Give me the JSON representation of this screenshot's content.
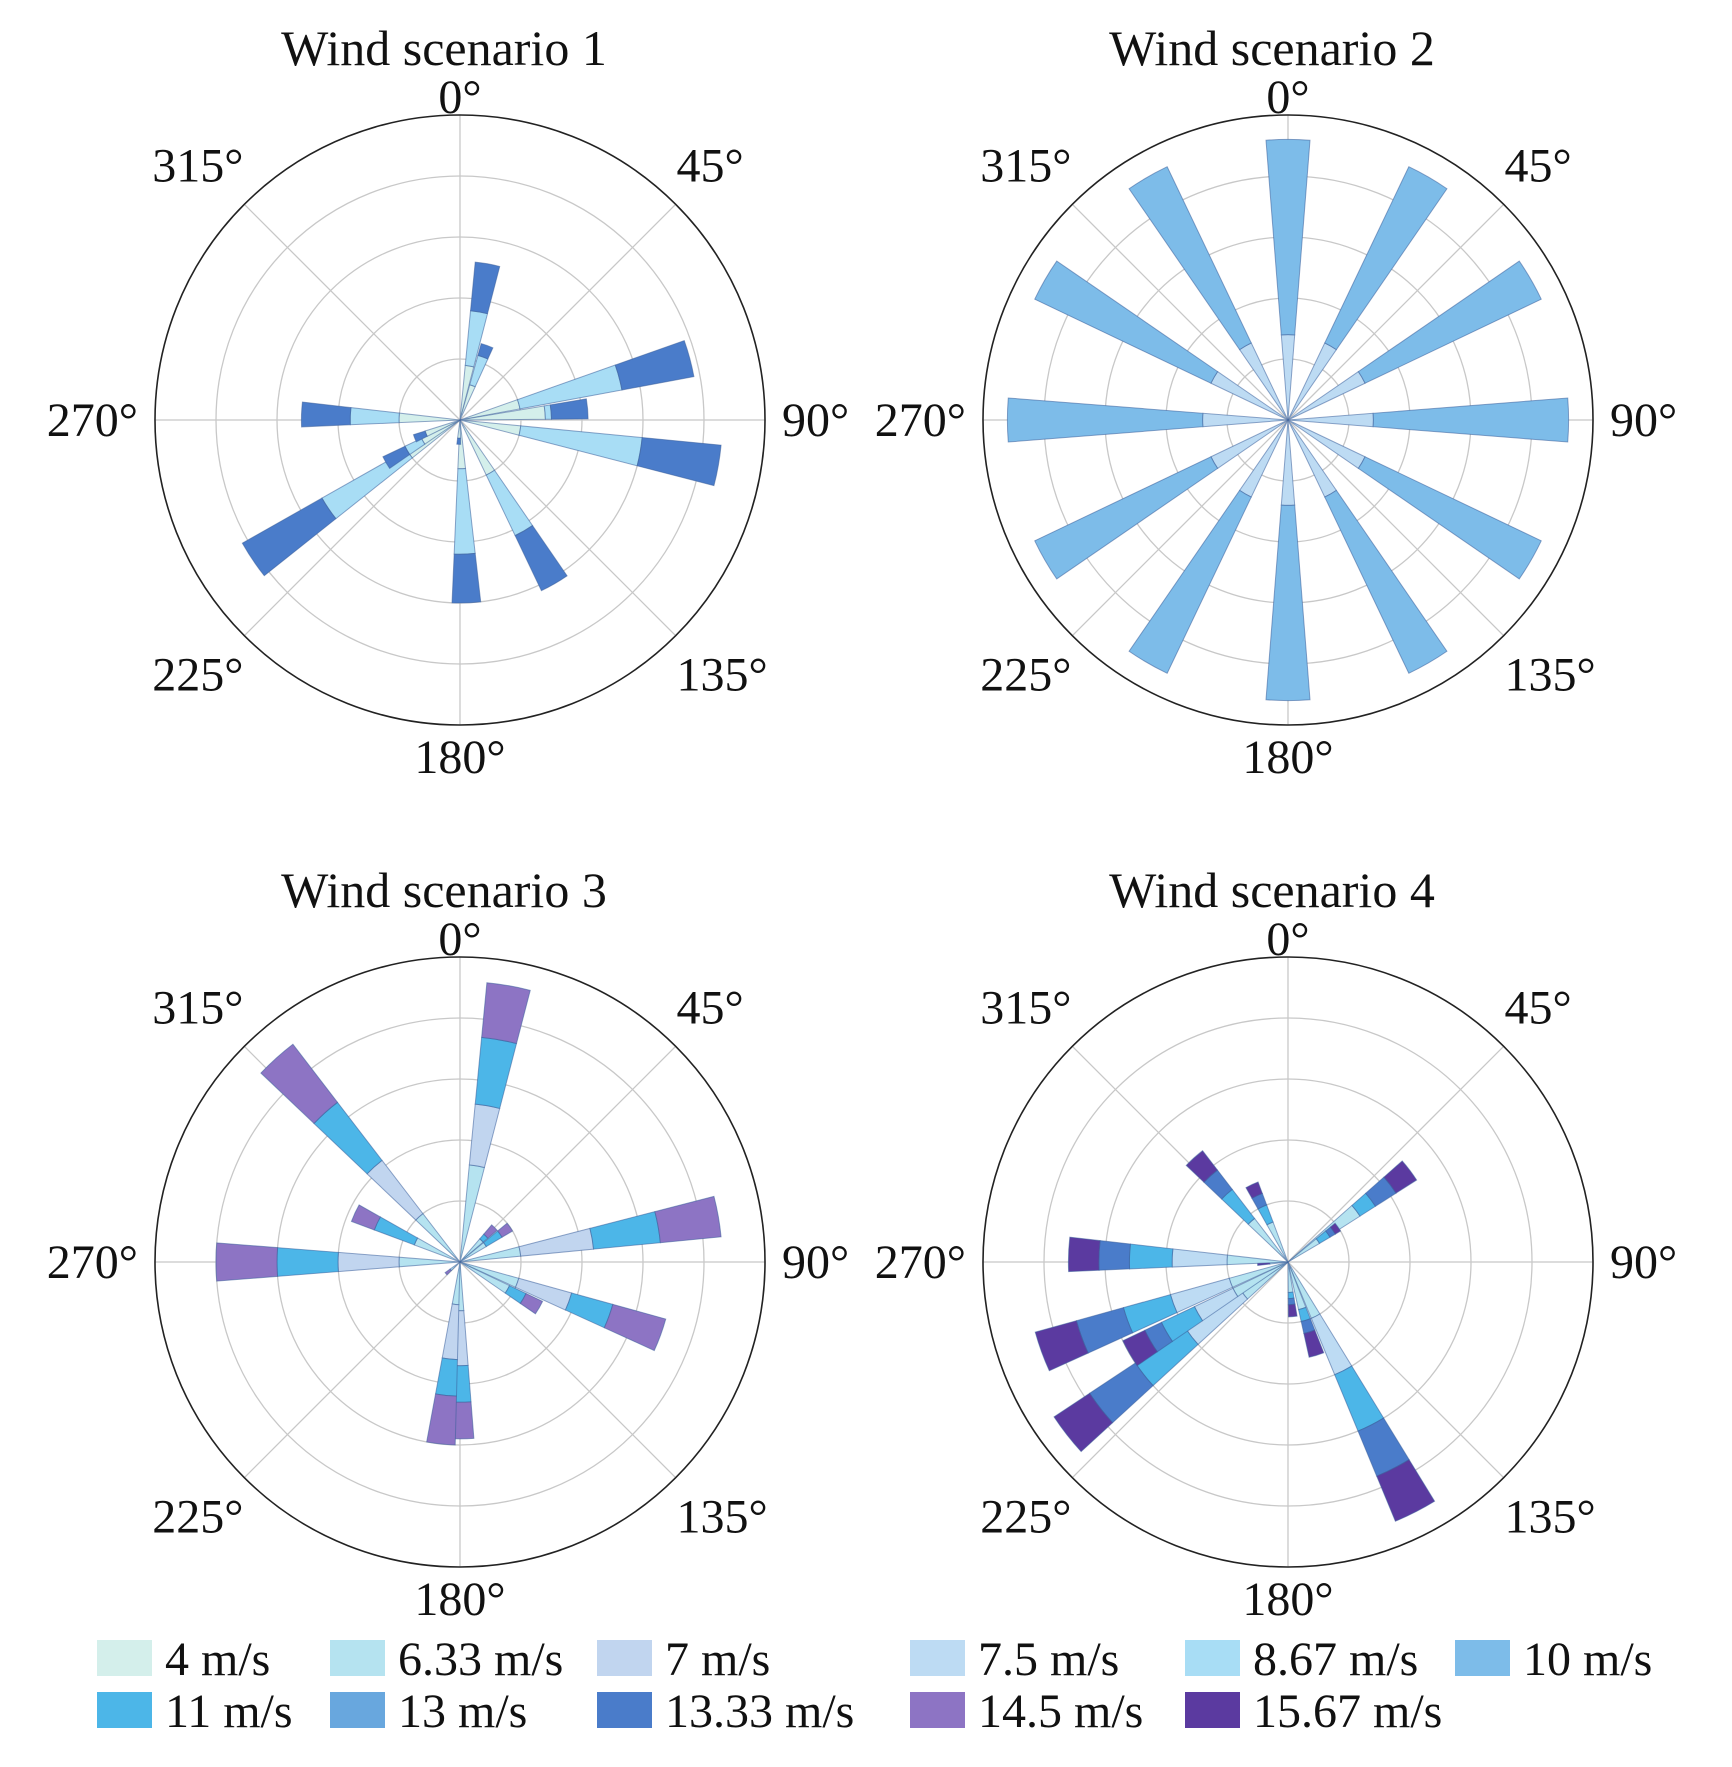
{
  "chart_data": [
    {
      "type": "polar-bar",
      "title": "Wind scenario 1",
      "angle_labels": [
        "0°",
        "45°",
        "90°",
        "135°",
        "180°",
        "225°",
        "270°",
        "315°"
      ],
      "radial_rings": 5,
      "radial_max": 5,
      "grid": true,
      "bars": [
        {
          "direction": 10,
          "segments": [
            {
              "speed": "4 m/s",
              "r": 0.9
            },
            {
              "speed": "8.67 m/s",
              "r": 1.8
            },
            {
              "speed": "13.33 m/s",
              "r": 2.6
            }
          ]
        },
        {
          "direction": 20,
          "segments": [
            {
              "speed": "4 m/s",
              "r": 0.6
            },
            {
              "speed": "8.67 m/s",
              "r": 1.1
            },
            {
              "speed": "13.33 m/s",
              "r": 1.3
            }
          ]
        },
        {
          "direction": 75,
          "segments": [
            {
              "speed": "4 m/s",
              "r": 1.0
            },
            {
              "speed": "8.67 m/s",
              "r": 2.7
            },
            {
              "speed": "13.33 m/s",
              "r": 3.9
            }
          ]
        },
        {
          "direction": 85,
          "segments": [
            {
              "speed": "4 m/s",
              "r": 1.4
            },
            {
              "speed": "8.67 m/s",
              "r": 1.5
            },
            {
              "speed": "13.33 m/s",
              "r": 2.1
            }
          ]
        },
        {
          "direction": 100,
          "segments": [
            {
              "speed": "4 m/s",
              "r": 1.0
            },
            {
              "speed": "8.67 m/s",
              "r": 3.0
            },
            {
              "speed": "13.33 m/s",
              "r": 4.3
            }
          ]
        },
        {
          "direction": 150,
          "segments": [
            {
              "speed": "4 m/s",
              "r": 1.0
            },
            {
              "speed": "8.67 m/s",
              "r": 2.1
            },
            {
              "speed": "13.33 m/s",
              "r": 3.1
            }
          ]
        },
        {
          "direction": 178,
          "segments": [
            {
              "speed": "4 m/s",
              "r": 0.8
            },
            {
              "speed": "8.67 m/s",
              "r": 2.2
            },
            {
              "speed": "13.33 m/s",
              "r": 3.0
            }
          ]
        },
        {
          "direction": 183,
          "segments": [
            {
              "speed": "4 m/s",
              "r": 0.3
            },
            {
              "speed": "13.33 m/s",
              "r": 0.4
            }
          ]
        },
        {
          "direction": 236,
          "segments": [
            {
              "speed": "4 m/s",
              "r": 1.0
            },
            {
              "speed": "8.67 m/s",
              "r": 2.6
            },
            {
              "speed": "13.33 m/s",
              "r": 4.1
            }
          ]
        },
        {
          "direction": 240,
          "segments": [
            {
              "speed": "4 m/s",
              "r": 0.7
            },
            {
              "speed": "8.67 m/s",
              "r": 1.0
            },
            {
              "speed": "13.33 m/s",
              "r": 1.4
            }
          ]
        },
        {
          "direction": 248,
          "segments": [
            {
              "speed": "4 m/s",
              "r": 0.6
            },
            {
              "speed": "13.33 m/s",
              "r": 0.8
            }
          ]
        },
        {
          "direction": 272,
          "segments": [
            {
              "speed": "4 m/s",
              "r": 1.0
            },
            {
              "speed": "8.67 m/s",
              "r": 1.8
            },
            {
              "speed": "13.33 m/s",
              "r": 2.6
            }
          ]
        }
      ]
    },
    {
      "type": "polar-bar",
      "title": "Wind scenario 2",
      "angle_labels": [
        "0°",
        "45°",
        "90°",
        "135°",
        "180°",
        "225°",
        "270°",
        "315°"
      ],
      "radial_rings": 5,
      "radial_max": 5,
      "grid": true,
      "bars": [
        {
          "direction": 0,
          "segments": [
            {
              "speed": "7.5 m/s",
              "r": 1.4
            },
            {
              "speed": "10 m/s",
              "r": 4.6
            }
          ]
        },
        {
          "direction": 30,
          "segments": [
            {
              "speed": "7.5 m/s",
              "r": 1.4
            },
            {
              "speed": "10 m/s",
              "r": 4.6
            }
          ]
        },
        {
          "direction": 60,
          "segments": [
            {
              "speed": "7.5 m/s",
              "r": 1.4
            },
            {
              "speed": "10 m/s",
              "r": 4.6
            }
          ]
        },
        {
          "direction": 90,
          "segments": [
            {
              "speed": "7.5 m/s",
              "r": 1.4
            },
            {
              "speed": "10 m/s",
              "r": 4.6
            }
          ]
        },
        {
          "direction": 120,
          "segments": [
            {
              "speed": "7.5 m/s",
              "r": 1.4
            },
            {
              "speed": "10 m/s",
              "r": 4.6
            }
          ]
        },
        {
          "direction": 150,
          "segments": [
            {
              "speed": "7.5 m/s",
              "r": 1.4
            },
            {
              "speed": "10 m/s",
              "r": 4.6
            }
          ]
        },
        {
          "direction": 180,
          "segments": [
            {
              "speed": "7.5 m/s",
              "r": 1.4
            },
            {
              "speed": "10 m/s",
              "r": 4.6
            }
          ]
        },
        {
          "direction": 210,
          "segments": [
            {
              "speed": "7.5 m/s",
              "r": 1.4
            },
            {
              "speed": "10 m/s",
              "r": 4.6
            }
          ]
        },
        {
          "direction": 240,
          "segments": [
            {
              "speed": "7.5 m/s",
              "r": 1.4
            },
            {
              "speed": "10 m/s",
              "r": 4.6
            }
          ]
        },
        {
          "direction": 270,
          "segments": [
            {
              "speed": "7.5 m/s",
              "r": 1.4
            },
            {
              "speed": "10 m/s",
              "r": 4.6
            }
          ]
        },
        {
          "direction": 300,
          "segments": [
            {
              "speed": "7.5 m/s",
              "r": 1.4
            },
            {
              "speed": "10 m/s",
              "r": 4.6
            }
          ]
        },
        {
          "direction": 330,
          "segments": [
            {
              "speed": "7.5 m/s",
              "r": 1.4
            },
            {
              "speed": "10 m/s",
              "r": 4.6
            }
          ]
        }
      ]
    },
    {
      "type": "polar-bar",
      "title": "Wind scenario 3",
      "angle_labels": [
        "0°",
        "45°",
        "90°",
        "135°",
        "180°",
        "225°",
        "270°",
        "315°"
      ],
      "radial_rings": 5,
      "radial_max": 5,
      "grid": true,
      "bars": [
        {
          "direction": 10,
          "segments": [
            {
              "speed": "6.33 m/s",
              "r": 1.6
            },
            {
              "speed": "7 m/s",
              "r": 2.6
            },
            {
              "speed": "11 m/s",
              "r": 3.7
            },
            {
              "speed": "14.5 m/s",
              "r": 4.6
            }
          ]
        },
        {
          "direction": 45,
          "segments": [
            {
              "speed": "6.33 m/s",
              "r": 0.5
            },
            {
              "speed": "11 m/s",
              "r": 0.6
            },
            {
              "speed": "14.5 m/s",
              "r": 0.8
            }
          ]
        },
        {
          "direction": 55,
          "segments": [
            {
              "speed": "6.33 m/s",
              "r": 0.5
            },
            {
              "speed": "11 m/s",
              "r": 0.8
            },
            {
              "speed": "14.5 m/s",
              "r": 1.0
            }
          ]
        },
        {
          "direction": 80,
          "segments": [
            {
              "speed": "6.33 m/s",
              "r": 1.0
            },
            {
              "speed": "7 m/s",
              "r": 2.2
            },
            {
              "speed": "11 m/s",
              "r": 3.3
            },
            {
              "speed": "14.5 m/s",
              "r": 4.3
            }
          ]
        },
        {
          "direction": 110,
          "segments": [
            {
              "speed": "6.33 m/s",
              "r": 1.0
            },
            {
              "speed": "7 m/s",
              "r": 1.9
            },
            {
              "speed": "11 m/s",
              "r": 2.6
            },
            {
              "speed": "14.5 m/s",
              "r": 3.5
            }
          ]
        },
        {
          "direction": 120,
          "segments": [
            {
              "speed": "6.33 m/s",
              "r": 0.9
            },
            {
              "speed": "11 m/s",
              "r": 1.2
            },
            {
              "speed": "14.5 m/s",
              "r": 1.5
            }
          ]
        },
        {
          "direction": 180,
          "segments": [
            {
              "speed": "6.33 m/s",
              "r": 0.8
            },
            {
              "speed": "7 m/s",
              "r": 1.7
            },
            {
              "speed": "11 m/s",
              "r": 2.3
            },
            {
              "speed": "14.5 m/s",
              "r": 2.9
            }
          ]
        },
        {
          "direction": 186,
          "segments": [
            {
              "speed": "6.33 m/s",
              "r": 0.7
            },
            {
              "speed": "7 m/s",
              "r": 1.6
            },
            {
              "speed": "11 m/s",
              "r": 2.2
            },
            {
              "speed": "14.5 m/s",
              "r": 3.0
            }
          ]
        },
        {
          "direction": 230,
          "segments": [
            {
              "speed": "6.33 m/s",
              "r": 0.2
            },
            {
              "speed": "14.5 m/s",
              "r": 0.3
            }
          ]
        },
        {
          "direction": 270,
          "segments": [
            {
              "speed": "6.33 m/s",
              "r": 1.0
            },
            {
              "speed": "7 m/s",
              "r": 2.0
            },
            {
              "speed": "11 m/s",
              "r": 3.0
            },
            {
              "speed": "14.5 m/s",
              "r": 4.0
            }
          ]
        },
        {
          "direction": 295,
          "segments": [
            {
              "speed": "6.33 m/s",
              "r": 0.8
            },
            {
              "speed": "11 m/s",
              "r": 1.5
            },
            {
              "speed": "14.5 m/s",
              "r": 1.9
            }
          ]
        },
        {
          "direction": 318,
          "segments": [
            {
              "speed": "6.33 m/s",
              "r": 1.0
            },
            {
              "speed": "7 m/s",
              "r": 2.1
            },
            {
              "speed": "11 m/s",
              "r": 3.3
            },
            {
              "speed": "14.5 m/s",
              "r": 4.5
            }
          ]
        }
      ]
    },
    {
      "type": "polar-bar",
      "title": "Wind scenario 4",
      "angle_labels": [
        "0°",
        "45°",
        "90°",
        "135°",
        "180°",
        "225°",
        "270°",
        "315°"
      ],
      "radial_rings": 5,
      "radial_max": 5,
      "grid": true,
      "bars": [
        {
          "direction": 53,
          "segments": [
            {
              "speed": "6.33 m/s",
              "r": 1.4
            },
            {
              "speed": "11 m/s",
              "r": 1.7
            },
            {
              "speed": "13.33 m/s",
              "r": 2.1
            },
            {
              "speed": "15.67 m/s",
              "r": 2.5
            }
          ]
        },
        {
          "direction": 55,
          "segments": [
            {
              "speed": "6.33 m/s",
              "r": 0.6
            },
            {
              "speed": "11 m/s",
              "r": 0.8
            },
            {
              "speed": "13.33 m/s",
              "r": 0.9
            },
            {
              "speed": "15.67 m/s",
              "r": 1.0
            }
          ]
        },
        {
          "direction": 153,
          "segments": [
            {
              "speed": "6.33 m/s",
              "r": 1.0
            },
            {
              "speed": "7.5 m/s",
              "r": 2.0
            },
            {
              "speed": "11 m/s",
              "r": 3.0
            },
            {
              "speed": "13.33 m/s",
              "r": 3.8
            },
            {
              "speed": "15.67 m/s",
              "r": 4.6
            }
          ]
        },
        {
          "direction": 163,
          "segments": [
            {
              "speed": "6.33 m/s",
              "r": 0.8
            },
            {
              "speed": "11 m/s",
              "r": 1.0
            },
            {
              "speed": "13.33 m/s",
              "r": 1.2
            },
            {
              "speed": "15.67 m/s",
              "r": 1.6
            }
          ]
        },
        {
          "direction": 175,
          "segments": [
            {
              "speed": "6.33 m/s",
              "r": 0.5
            },
            {
              "speed": "11 m/s",
              "r": 0.6
            },
            {
              "speed": "13.33 m/s",
              "r": 0.7
            },
            {
              "speed": "15.67 m/s",
              "r": 0.9
            }
          ]
        },
        {
          "direction": 232,
          "segments": [
            {
              "speed": "6.33 m/s",
              "r": 0.9
            },
            {
              "speed": "7.5 m/s",
              "r": 2.0
            },
            {
              "speed": "11 m/s",
              "r": 3.0
            },
            {
              "speed": "13.33 m/s",
              "r": 3.9
            },
            {
              "speed": "15.67 m/s",
              "r": 4.6
            }
          ]
        },
        {
          "direction": 240,
          "segments": [
            {
              "speed": "6.33 m/s",
              "r": 1.0
            },
            {
              "speed": "7.5 m/s",
              "r": 1.7
            },
            {
              "speed": "11 m/s",
              "r": 2.3
            },
            {
              "speed": "13.33 m/s",
              "r": 2.6
            },
            {
              "speed": "15.67 m/s",
              "r": 3.0
            }
          ]
        },
        {
          "direction": 250,
          "segments": [
            {
              "speed": "6.33 m/s",
              "r": 1.0
            },
            {
              "speed": "7.5 m/s",
              "r": 2.0
            },
            {
              "speed": "11 m/s",
              "r": 2.8
            },
            {
              "speed": "13.33 m/s",
              "r": 3.6
            },
            {
              "speed": "15.67 m/s",
              "r": 4.3
            }
          ]
        },
        {
          "direction": 268,
          "segments": [
            {
              "speed": "6.33 m/s",
              "r": 0.3
            },
            {
              "speed": "15.67 m/s",
              "r": 0.5
            }
          ]
        },
        {
          "direction": 272,
          "segments": [
            {
              "speed": "6.33 m/s",
              "r": 1.0
            },
            {
              "speed": "7.5 m/s",
              "r": 1.9
            },
            {
              "speed": "11 m/s",
              "r": 2.6
            },
            {
              "speed": "13.33 m/s",
              "r": 3.1
            },
            {
              "speed": "15.67 m/s",
              "r": 3.6
            }
          ]
        },
        {
          "direction": 318,
          "segments": [
            {
              "speed": "6.33 m/s",
              "r": 0.9
            },
            {
              "speed": "11 m/s",
              "r": 1.5
            },
            {
              "speed": "13.33 m/s",
              "r": 1.9
            },
            {
              "speed": "15.67 m/s",
              "r": 2.3
            }
          ]
        },
        {
          "direction": 335,
          "segments": [
            {
              "speed": "6.33 m/s",
              "r": 0.7
            },
            {
              "speed": "11 m/s",
              "r": 1.0
            },
            {
              "speed": "13.33 m/s",
              "r": 1.2
            },
            {
              "speed": "15.67 m/s",
              "r": 1.4
            }
          ]
        }
      ]
    }
  ],
  "legend": [
    {
      "label": "4 m/s",
      "color": "#d4efeb"
    },
    {
      "label": "6.33 m/s",
      "color": "#b5e3f0"
    },
    {
      "label": "7 m/s",
      "color": "#c1d5ef"
    },
    {
      "label": "7.5 m/s",
      "color": "#bddbf3"
    },
    {
      "label": "8.67 m/s",
      "color": "#a8ddf5"
    },
    {
      "label": "10 m/s",
      "color": "#7dbce9"
    },
    {
      "label": "11 m/s",
      "color": "#4cb6e8"
    },
    {
      "label": "13 m/s",
      "color": "#68a7de"
    },
    {
      "label": "13.33 m/s",
      "color": "#4a7cca"
    },
    {
      "label": "14.5 m/s",
      "color": "#8d74c4"
    },
    {
      "label": "15.67 m/s",
      "color": "#5b3aa0"
    }
  ]
}
